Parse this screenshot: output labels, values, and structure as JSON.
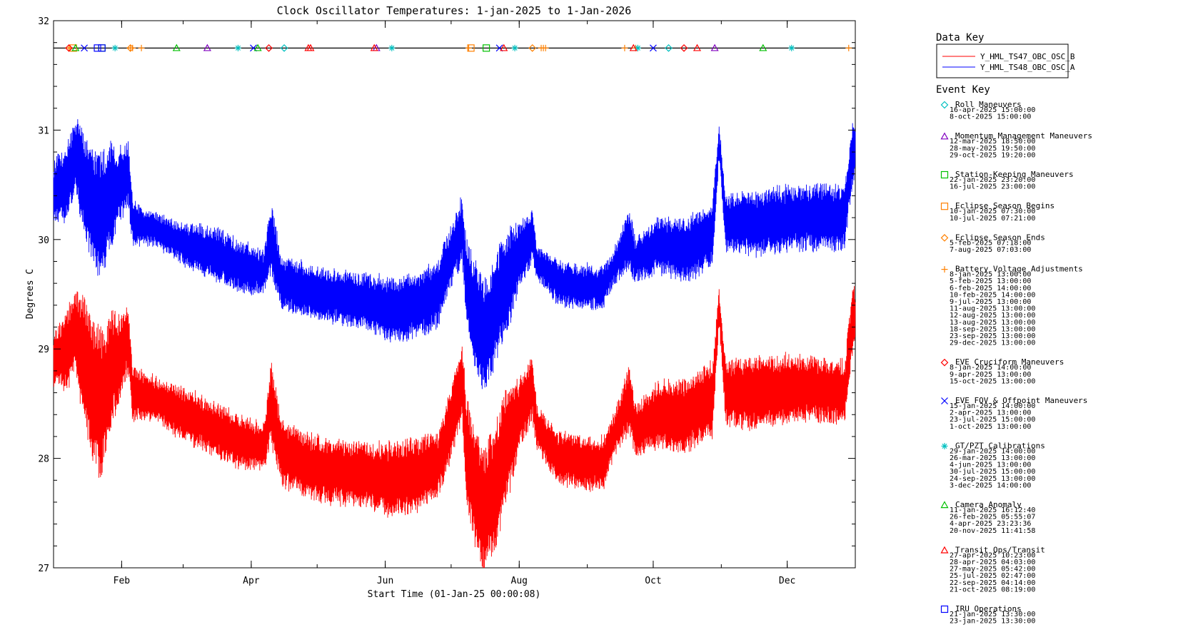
{
  "chart_data": {
    "type": "line",
    "title": "Clock Oscillator Temperatures: 1-jan-2025 to 1-Jan-2026",
    "xlabel": "Start Time (01-Jan-25 00:00:08)",
    "ylabel": "Degrees C",
    "xlim": [
      "2025-01-01",
      "2026-01-01"
    ],
    "ylim": [
      27,
      32
    ],
    "y_ticks": [
      "27",
      "28",
      "29",
      "30",
      "31",
      "32"
    ],
    "x_ticks": [
      {
        "date": "2025-02-01",
        "label": "Feb"
      },
      {
        "date": "2025-04-01",
        "label": "Apr"
      },
      {
        "date": "2025-06-01",
        "label": "Jun"
      },
      {
        "date": "2025-08-01",
        "label": "Aug"
      },
      {
        "date": "2025-10-01",
        "label": "Oct"
      },
      {
        "date": "2025-12-01",
        "label": "Dec"
      }
    ],
    "grid": false,
    "event_line_y": 31.75,
    "data_key": {
      "title": "Data Key",
      "series_names": [
        "Y_HML_TS47_OBC_OSC_B",
        "Y_HML_TS48_OBC_OSC_A"
      ]
    },
    "series": [
      {
        "name": "Y_HML_TS48_OBC_OSC_A",
        "color": "#0000ff",
        "points": [
          [
            0,
            30.45,
            0.25
          ],
          [
            5,
            30.5,
            0.35
          ],
          [
            10,
            30.75,
            0.35
          ],
          [
            14,
            30.5,
            0.5
          ],
          [
            18,
            30.3,
            0.55
          ],
          [
            22,
            30.2,
            0.6
          ],
          [
            26,
            30.4,
            0.5
          ],
          [
            30,
            30.5,
            0.35
          ],
          [
            34,
            30.6,
            0.3
          ],
          [
            36,
            30.15,
            0.2
          ],
          [
            45,
            30.1,
            0.15
          ],
          [
            60,
            29.95,
            0.2
          ],
          [
            75,
            29.85,
            0.25
          ],
          [
            85,
            29.75,
            0.25
          ],
          [
            96,
            29.7,
            0.2
          ],
          [
            99,
            30.0,
            0.35
          ],
          [
            104,
            29.6,
            0.25
          ],
          [
            120,
            29.5,
            0.25
          ],
          [
            140,
            29.45,
            0.25
          ],
          [
            155,
            29.35,
            0.3
          ],
          [
            165,
            29.4,
            0.3
          ],
          [
            175,
            29.5,
            0.3
          ],
          [
            180,
            29.8,
            0.3
          ],
          [
            186,
            30.1,
            0.3
          ],
          [
            188,
            29.6,
            0.4
          ],
          [
            192,
            29.3,
            0.5
          ],
          [
            196,
            29.1,
            0.55
          ],
          [
            202,
            29.4,
            0.5
          ],
          [
            206,
            29.6,
            0.5
          ],
          [
            212,
            29.85,
            0.3
          ],
          [
            218,
            30.05,
            0.25
          ],
          [
            220,
            29.8,
            0.15
          ],
          [
            230,
            29.6,
            0.2
          ],
          [
            250,
            29.55,
            0.2
          ],
          [
            255,
            29.75,
            0.15
          ],
          [
            262,
            30.0,
            0.3
          ],
          [
            265,
            29.8,
            0.2
          ],
          [
            275,
            29.95,
            0.25
          ],
          [
            288,
            29.9,
            0.3
          ],
          [
            300,
            30.05,
            0.3
          ],
          [
            303,
            30.9,
            0.15
          ],
          [
            306,
            30.15,
            0.25
          ],
          [
            320,
            30.15,
            0.3
          ],
          [
            340,
            30.2,
            0.3
          ],
          [
            360,
            30.2,
            0.3
          ],
          [
            364,
            30.8,
            0.3
          ],
          [
            365,
            30.8,
            0.2
          ]
        ]
      },
      {
        "name": "Y_HML_TS47_OBC_OSC_B",
        "color": "#ff0000",
        "points": [
          [
            0,
            28.9,
            0.25
          ],
          [
            5,
            28.95,
            0.35
          ],
          [
            10,
            29.15,
            0.4
          ],
          [
            14,
            28.9,
            0.6
          ],
          [
            18,
            28.6,
            0.7
          ],
          [
            22,
            28.5,
            0.7
          ],
          [
            26,
            28.8,
            0.55
          ],
          [
            30,
            28.9,
            0.4
          ],
          [
            34,
            29.1,
            0.3
          ],
          [
            36,
            28.6,
            0.25
          ],
          [
            45,
            28.55,
            0.2
          ],
          [
            60,
            28.4,
            0.25
          ],
          [
            75,
            28.25,
            0.25
          ],
          [
            85,
            28.15,
            0.25
          ],
          [
            96,
            28.1,
            0.2
          ],
          [
            99,
            28.5,
            0.4
          ],
          [
            104,
            28.05,
            0.3
          ],
          [
            120,
            27.9,
            0.3
          ],
          [
            140,
            27.85,
            0.3
          ],
          [
            155,
            27.8,
            0.35
          ],
          [
            165,
            27.85,
            0.35
          ],
          [
            175,
            27.95,
            0.3
          ],
          [
            180,
            28.25,
            0.35
          ],
          [
            186,
            28.7,
            0.35
          ],
          [
            188,
            28.1,
            0.5
          ],
          [
            192,
            27.7,
            0.55
          ],
          [
            196,
            27.5,
            0.6
          ],
          [
            202,
            27.8,
            0.6
          ],
          [
            206,
            28.1,
            0.55
          ],
          [
            212,
            28.4,
            0.35
          ],
          [
            218,
            28.65,
            0.3
          ],
          [
            220,
            28.3,
            0.2
          ],
          [
            230,
            28.0,
            0.25
          ],
          [
            250,
            27.95,
            0.25
          ],
          [
            255,
            28.2,
            0.2
          ],
          [
            262,
            28.55,
            0.3
          ],
          [
            265,
            28.25,
            0.25
          ],
          [
            275,
            28.4,
            0.3
          ],
          [
            288,
            28.4,
            0.35
          ],
          [
            300,
            28.55,
            0.35
          ],
          [
            303,
            29.4,
            0.15
          ],
          [
            306,
            28.6,
            0.3
          ],
          [
            320,
            28.6,
            0.35
          ],
          [
            340,
            28.65,
            0.3
          ],
          [
            360,
            28.6,
            0.3
          ],
          [
            364,
            29.3,
            0.3
          ],
          [
            365,
            29.3,
            0.2
          ]
        ]
      }
    ],
    "events": [
      {
        "category": "Roll Maneuvers",
        "symbol": "diamond",
        "color": "#00c0c0",
        "dates": [
          "16-apr-2025 15:00:00",
          "8-oct-2025 15:00:00"
        ],
        "days": [
          105,
          280
        ]
      },
      {
        "category": "Momentum Management Maneuvers",
        "symbol": "triangle",
        "color": "#8000c0",
        "dates": [
          "12-mar-2025 18:50:00",
          "28-may-2025 19:50:00",
          "29-oct-2025 19:20:00"
        ],
        "days": [
          70,
          147,
          301
        ]
      },
      {
        "category": "Station-Keeping Maneuvers",
        "symbol": "square",
        "color": "#00c000",
        "dates": [
          "22-jan-2025 23:20:00",
          "16-jul-2025 23:00:00"
        ],
        "days": [
          22,
          197
        ]
      },
      {
        "category": "Eclipse Season Begins",
        "symbol": "square",
        "color": "#ff8000",
        "dates": [
          "10-jan-2025 07:30:00",
          "10-jul-2025 07:21:00"
        ],
        "days": [
          9,
          190
        ]
      },
      {
        "category": "Eclipse Season Ends",
        "symbol": "diamond",
        "color": "#ff8000",
        "dates": [
          "5-feb-2025 07:18:00",
          "7-aug-2025 07:03:00"
        ],
        "days": [
          35,
          218
        ]
      },
      {
        "category": "Battery Voltage Adjustments",
        "symbol": "plus",
        "color": "#ff8000",
        "dates": [
          "8-jan-2025 13:00:00",
          "5-feb-2025 13:00:00",
          "6-feb-2025 14:00:00",
          "10-feb-2025 14:00:00",
          "9-jul-2025 13:00:00",
          "11-aug-2025 13:00:00",
          "12-aug-2025 13:00:00",
          "13-aug-2025 13:00:00",
          "18-sep-2025 13:00:00",
          "23-sep-2025 13:00:00",
          "29-dec-2025 13:00:00"
        ],
        "days": [
          7,
          35,
          36,
          40,
          189,
          222,
          223,
          224,
          260,
          265,
          362
        ]
      },
      {
        "category": "EVE Cruciform Maneuvers",
        "symbol": "diamond",
        "color": "#ff0000",
        "dates": [
          "8-jan-2025 14:00:00",
          "9-apr-2025 13:00:00",
          "15-oct-2025 13:00:00"
        ],
        "days": [
          7,
          98,
          287
        ]
      },
      {
        "category": "EVE FOV & Offpoint Maneuvers",
        "symbol": "x",
        "color": "#0000ff",
        "dates": [
          "15-jan-2025 14:00:00",
          "2-apr-2025 13:00:00",
          "23-jul-2025 15:00:00",
          "1-oct-2025 13:00:00"
        ],
        "days": [
          14,
          91,
          203,
          273
        ]
      },
      {
        "category": "GT/PZT Calibrations",
        "symbol": "asterisk",
        "color": "#00c0c0",
        "dates": [
          "29-jan-2025 14:00:00",
          "26-mar-2025 13:00:00",
          "4-jun-2025 13:00:00",
          "30-jul-2025 15:00:00",
          "24-sep-2025 13:00:00",
          "3-dec-2025 14:00:00"
        ],
        "days": [
          28,
          84,
          154,
          210,
          266,
          336
        ]
      },
      {
        "category": "Camera Anomaly",
        "symbol": "triangle",
        "color": "#00c000",
        "dates": [
          "11-jan-2025 16:12:40",
          "26-feb-2025 05:55:07",
          "4-apr-2025 23:23:36",
          "20-nov-2025 11:41:58"
        ],
        "days": [
          10,
          56,
          93,
          323
        ]
      },
      {
        "category": "Transit Ops/Transit",
        "symbol": "triangle",
        "color": "#ff0000",
        "dates": [
          "27-apr-2025 10:23:00",
          "28-apr-2025 04:03:00",
          "27-may-2025 05:42:00",
          "25-jul-2025 02:47:00",
          "22-sep-2025 04:14:00",
          "21-oct-2025 08:19:00"
        ],
        "days": [
          116,
          117,
          146,
          205,
          264,
          293
        ]
      },
      {
        "category": "IRU Operations",
        "symbol": "square",
        "color": "#0000ff",
        "dates": [
          "21-jan-2025 13:30:00",
          "23-jan-2025 13:30:00"
        ],
        "days": [
          20,
          22
        ]
      }
    ],
    "event_key_title": "Event Key"
  }
}
